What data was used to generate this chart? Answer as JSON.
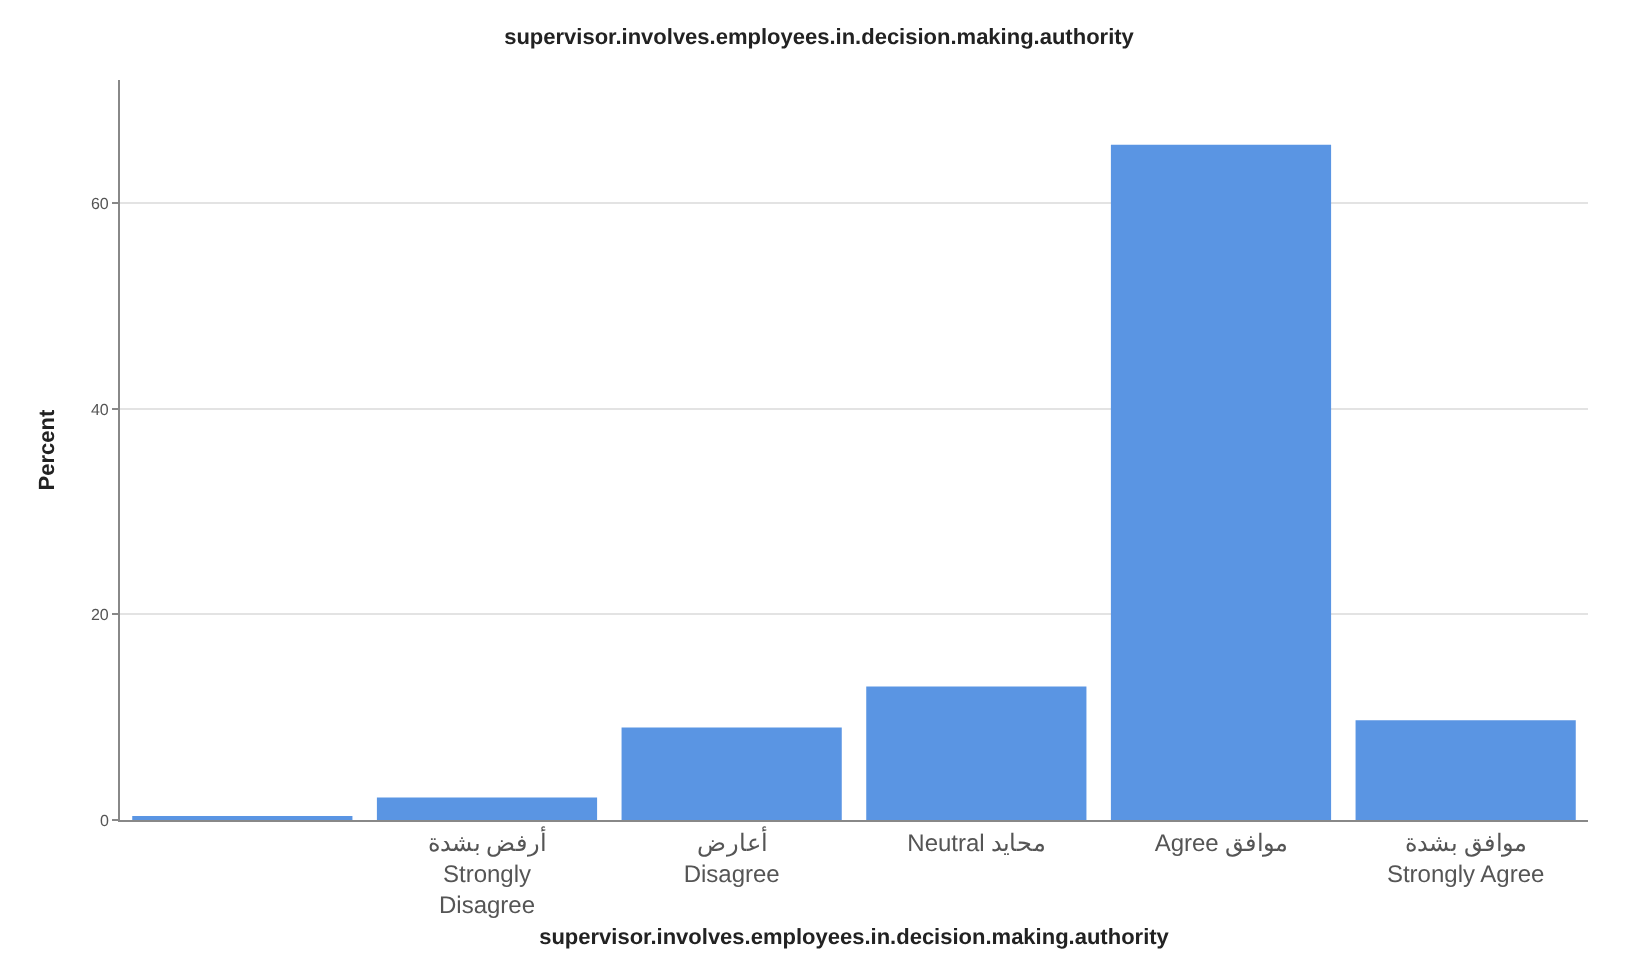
{
  "chart_data": {
    "type": "bar",
    "title": "supervisor.involves.employees.in.decision.making.authority",
    "xlabel": "supervisor.involves.employees.in.decision.making.authority",
    "ylabel": "Percent",
    "categories": [
      null,
      "أرفض بشدة\nStrongly\nDisagree",
      "أعارض\nDisagree",
      "Neutral محايد",
      "Agree موافق",
      "موافق بشدة\nStrongly Agree"
    ],
    "values": [
      0.4,
      2.2,
      9.0,
      13.0,
      65.7,
      9.7
    ],
    "color": "#5a95e3",
    "ylim": [
      0,
      72
    ],
    "yticks": [
      0,
      20,
      40,
      60
    ],
    "grid": "y"
  }
}
